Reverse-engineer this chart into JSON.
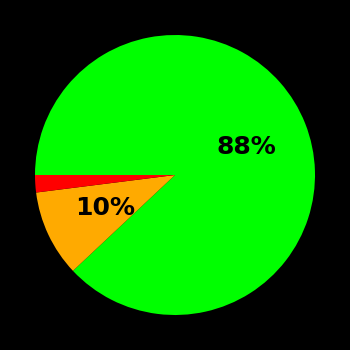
{
  "slices": [
    88,
    10,
    2
  ],
  "colors": [
    "#00ff00",
    "#ffaa00",
    "#ff0000"
  ],
  "labels": [
    "88%",
    "10%",
    ""
  ],
  "background_color": "#000000",
  "label_fontsize": 18,
  "label_fontweight": "bold",
  "startangle": 180,
  "figsize": [
    3.5,
    3.5
  ],
  "dpi": 100
}
